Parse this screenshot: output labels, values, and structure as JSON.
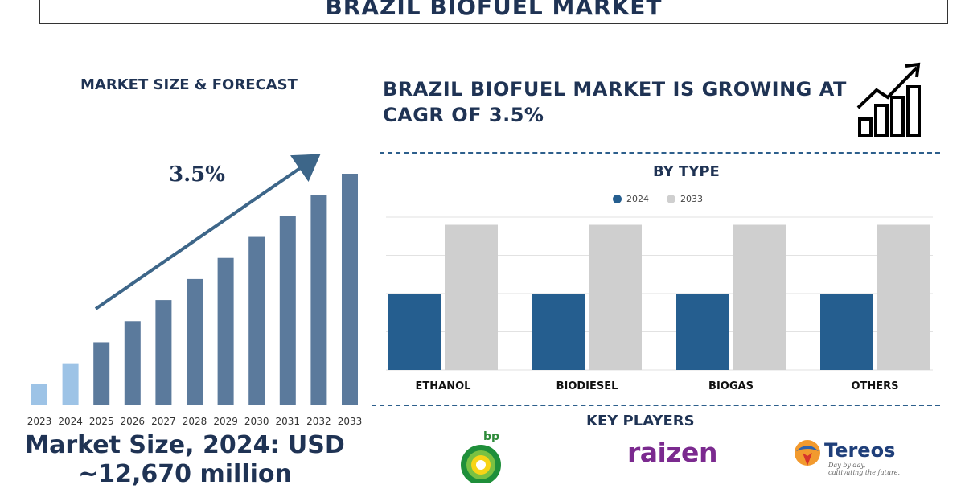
{
  "header": {
    "title": "BRAZIL BIOFUEL MARKET"
  },
  "left_panel": {
    "heading": "MARKET SIZE & FORECAST",
    "cagr_label": "3.5%",
    "market_size_line1": "Market Size, 2024: USD",
    "market_size_line2": "~12,670 million"
  },
  "right_panel": {
    "growth_text": "BRAZIL BIOFUEL MARKET IS GROWING AT CAGR OF 3.5%",
    "type_title": "BY TYPE",
    "key_players_title": "KEY PLAYERS"
  },
  "key_players": {
    "bp": "bp",
    "raizen": "raizen",
    "tereos": "Tereos",
    "tereos_tagline_1": "Day by day,",
    "tereos_tagline_2": "cultivating the future."
  },
  "icons": [
    "growth-chart-icon",
    "bp-logo-icon",
    "tereos-logo-icon"
  ],
  "colors": {
    "title": "#1f3354",
    "bar_light": "#9dc3e6",
    "bar_dark": "#5b7a9c",
    "series_2024": "#255e8f",
    "series_2033": "#cfcfcf",
    "dash": "#2d5f8c"
  },
  "chart_data": [
    {
      "type": "bar",
      "categories": [
        "2023",
        "2024",
        "2025",
        "2026",
        "2027",
        "2028",
        "2029",
        "2030",
        "2031",
        "2032",
        "2033"
      ],
      "values": [
        1.0,
        2.0,
        3.0,
        4.0,
        5.0,
        6.0,
        7.0,
        8.0,
        9.0,
        10.0,
        11.0
      ],
      "highlighted": [
        "2023",
        "2024"
      ],
      "annotation": "3.5%",
      "grid": false
    },
    {
      "type": "bar",
      "categories": [
        "ETHANOL",
        "BIODIESEL",
        "BIOGAS",
        "OTHERS"
      ],
      "series": [
        {
          "name": "2024",
          "values": [
            100,
            100,
            100,
            100
          ]
        },
        {
          "name": "2033",
          "values": [
            190,
            190,
            190,
            190
          ]
        }
      ],
      "ylim": [
        0,
        200
      ],
      "grid": true,
      "legend": "top-center"
    }
  ]
}
